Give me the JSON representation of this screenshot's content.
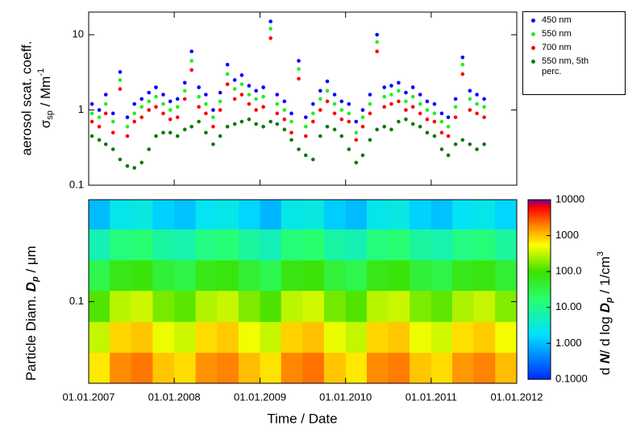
{
  "chart_data": [
    {
      "type": "scatter",
      "ylabel": [
        "aerosol scat. coeff.",
        "σ",
        "sp",
        " / Mm",
        "-1"
      ],
      "log_y": true,
      "ylim": [
        0.1,
        20
      ],
      "yticks": [
        0.1,
        1,
        10
      ],
      "xlim": [
        "2007-01-01",
        "2012-01-01"
      ],
      "legend": "outside-right",
      "x": [
        "2007-01-15",
        "2007-02-15",
        "2007-03-15",
        "2007-04-15",
        "2007-05-15",
        "2007-06-15",
        "2007-07-15",
        "2007-08-15",
        "2007-09-15",
        "2007-10-15",
        "2007-11-15",
        "2007-12-15",
        "2008-01-15",
        "2008-02-15",
        "2008-03-15",
        "2008-04-15",
        "2008-05-15",
        "2008-06-15",
        "2008-07-15",
        "2008-08-15",
        "2008-09-15",
        "2008-10-15",
        "2008-11-15",
        "2008-12-15",
        "2009-01-15",
        "2009-02-15",
        "2009-03-15",
        "2009-04-15",
        "2009-05-15",
        "2009-06-15",
        "2009-07-15",
        "2009-08-15",
        "2009-09-15",
        "2009-10-15",
        "2009-11-15",
        "2009-12-15",
        "2010-01-15",
        "2010-02-15",
        "2010-03-15",
        "2010-04-15",
        "2010-05-15",
        "2010-06-15",
        "2010-07-15",
        "2010-08-15",
        "2010-09-15",
        "2010-10-15",
        "2010-11-15",
        "2010-12-15",
        "2011-01-15",
        "2011-02-15",
        "2011-03-15",
        "2011-04-15",
        "2011-05-15",
        "2011-06-15",
        "2011-07-15",
        "2011-08-15"
      ],
      "series": [
        {
          "name": "450 nm",
          "color": "#0000ff",
          "values": [
            1.2,
            1.0,
            1.6,
            0.9,
            3.2,
            0.8,
            1.2,
            1.4,
            1.7,
            2.0,
            1.6,
            1.3,
            1.4,
            2.3,
            6,
            2,
            1.6,
            1.0,
            1.7,
            4,
            2.5,
            2.9,
            2.1,
            1.8,
            2,
            15,
            1.6,
            1.3,
            0.9,
            4.5,
            0.8,
            1.2,
            1.8,
            2.4,
            1.6,
            1.3,
            1.2,
            0.7,
            1.0,
            1.6,
            10,
            2,
            2.1,
            2.3,
            1.7,
            2,
            1.6,
            1.3,
            1.2,
            0.9,
            0.8,
            1.4,
            5,
            1.8,
            1.6,
            1.4
          ]
        },
        {
          "name": "550 nm",
          "color": "#22ee22",
          "values": [
            0.9,
            0.8,
            1.2,
            0.7,
            2.5,
            0.6,
            0.9,
            1.1,
            1.3,
            1.5,
            1.2,
            1.0,
            1.1,
            1.8,
            4.5,
            1.5,
            1.2,
            0.8,
            1.3,
            3,
            1.9,
            2.2,
            1.6,
            1.4,
            1.5,
            12,
            1.2,
            1,
            0.7,
            3.5,
            0.6,
            0.9,
            1.4,
            1.8,
            1.2,
            1.0,
            0.9,
            0.5,
            0.8,
            1.2,
            8,
            1.5,
            1.6,
            1.8,
            1.3,
            1.5,
            1.2,
            1.0,
            0.9,
            0.7,
            0.6,
            1.1,
            4,
            1.4,
            1.2,
            1.1
          ]
        },
        {
          "name": "700 nm",
          "color": "#ff0000",
          "values": [
            0.7,
            0.6,
            0.9,
            0.5,
            1.9,
            0.45,
            0.7,
            0.8,
            1.0,
            1.1,
            0.9,
            0.75,
            0.8,
            1.4,
            3.4,
            1.1,
            0.9,
            0.6,
            1.0,
            2.2,
            1.4,
            1.6,
            1.2,
            1.0,
            1.1,
            9,
            0.9,
            0.75,
            0.5,
            2.6,
            0.45,
            0.7,
            1.0,
            1.3,
            0.9,
            0.75,
            0.7,
            0.4,
            0.6,
            0.9,
            6,
            1.1,
            1.2,
            1.3,
            1.0,
            1.1,
            0.9,
            0.75,
            0.7,
            0.5,
            0.45,
            0.8,
            3,
            1.0,
            0.9,
            0.8
          ]
        },
        {
          "name": "550 nm, 5th perc.",
          "color": "#0a7a0a",
          "values": [
            0.45,
            0.4,
            0.35,
            0.3,
            0.22,
            0.18,
            0.17,
            0.2,
            0.3,
            0.45,
            0.5,
            0.5,
            0.45,
            0.55,
            0.6,
            0.7,
            0.5,
            0.35,
            0.45,
            0.6,
            0.65,
            0.7,
            0.75,
            0.65,
            0.6,
            0.7,
            0.65,
            0.55,
            0.4,
            0.3,
            0.25,
            0.22,
            0.45,
            0.6,
            0.55,
            0.45,
            0.3,
            0.2,
            0.25,
            0.4,
            0.55,
            0.6,
            0.55,
            0.7,
            0.75,
            0.65,
            0.6,
            0.5,
            0.45,
            0.3,
            0.25,
            0.35,
            0.4,
            0.35,
            0.3,
            0.35
          ]
        }
      ]
    },
    {
      "type": "heatmap",
      "xlabel": "Time / Date",
      "ylabel": [
        "Particle Diam. ",
        "D",
        "p",
        " / μm"
      ],
      "zlabel": [
        "d ",
        "N",
        "/ d log ",
        "D",
        "p",
        " /  1/cm",
        "3"
      ],
      "log_y": true,
      "ylim": [
        0.03,
        0.45
      ],
      "yticks": [
        0.1
      ],
      "xlim": [
        "2007-01-01",
        "2012-01-01"
      ],
      "xticks": [
        {
          "value": "2007-01-01",
          "label": "01.01.2007"
        },
        {
          "value": "2008-01-01",
          "label": "01.01.2008"
        },
        {
          "value": "2009-01-01",
          "label": "01.01.2009"
        },
        {
          "value": "2010-01-01",
          "label": "01.01.2010"
        },
        {
          "value": "2011-01-01",
          "label": "01.01.2011"
        },
        {
          "value": "2012-01-01",
          "label": "01.01.2012"
        }
      ],
      "zlim": [
        0.1,
        10000
      ],
      "log_z": true,
      "zticks": [
        {
          "value": 0.1,
          "label": "0.1000"
        },
        {
          "value": 1,
          "label": "1.000"
        },
        {
          "value": 10,
          "label": "10.00"
        },
        {
          "value": 100,
          "label": "100.0"
        },
        1000,
        10000
      ],
      "x_edges": [
        "2007-01-01",
        "2007-04-01",
        "2007-07-01",
        "2007-10-01",
        "2008-01-01",
        "2008-04-01",
        "2008-07-01",
        "2008-10-01",
        "2009-01-01",
        "2009-04-01",
        "2009-07-01",
        "2009-10-01",
        "2010-01-01",
        "2010-04-01",
        "2010-07-01",
        "2010-10-01",
        "2011-01-01",
        "2011-04-01",
        "2011-07-01",
        "2011-10-01",
        "2012-01-01"
      ],
      "y_edges": [
        0.03,
        0.0473,
        0.0746,
        0.118,
        0.185,
        0.292,
        0.45
      ],
      "z": [
        [
          700,
          1800,
          2200,
          1000,
          800,
          1700,
          2000,
          1100,
          750,
          1900,
          2300,
          1000,
          700,
          1800,
          2100,
          1000,
          800,
          1600,
          2000,
          1100
        ],
        [
          330,
          850,
          1000,
          480,
          360,
          800,
          950,
          500,
          340,
          880,
          1050,
          470,
          330,
          850,
          980,
          490,
          370,
          780,
          940,
          510
        ],
        [
          120,
          300,
          360,
          170,
          130,
          280,
          340,
          180,
          115,
          310,
          370,
          165,
          120,
          300,
          350,
          175,
          135,
          270,
          330,
          185
        ],
        [
          30,
          72,
          86,
          42,
          32,
          68,
          80,
          44,
          28,
          75,
          88,
          40,
          30,
          72,
          84,
          42,
          33,
          66,
          78,
          45
        ],
        [
          6,
          14,
          17,
          8,
          6.5,
          13,
          16,
          8.5,
          5.5,
          15,
          18,
          7.5,
          6,
          14,
          17,
          8,
          6.5,
          13,
          15,
          8.5
        ],
        [
          1,
          2.4,
          2.8,
          1.4,
          1.1,
          2.2,
          2.6,
          1.5,
          0.9,
          2.6,
          3,
          1.3,
          1,
          2.4,
          2.8,
          1.4,
          1.1,
          2.1,
          2.5,
          1.5
        ]
      ]
    }
  ]
}
